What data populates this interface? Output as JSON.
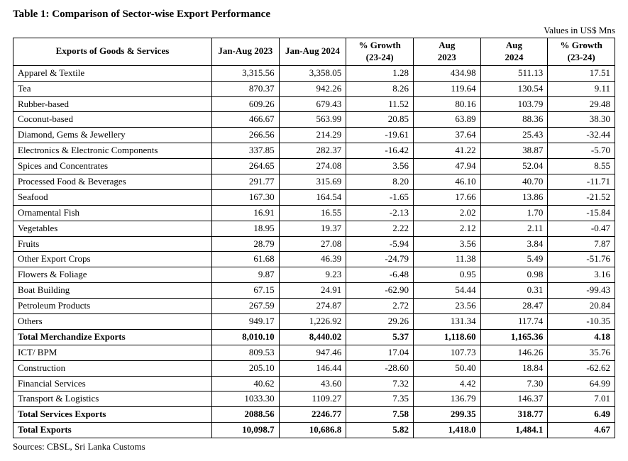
{
  "title": "Table 1: Comparison of Sector-wise Export Performance",
  "units": "Values in US$ Mns",
  "source": "Sources: CBSL, Sri Lanka Customs",
  "columns": {
    "rowhead": "Exports of Goods & Services",
    "c1": "Jan-Aug 2023",
    "c2": "Jan-Aug 2024",
    "c3a": "% Growth",
    "c3b": "(23-24)",
    "c4a": "Aug",
    "c4b": "2023",
    "c5a": "Aug",
    "c5b": "2024",
    "c6a": "% Growth",
    "c6b": "(23-24)"
  },
  "rows": [
    {
      "label": "Apparel & Textile",
      "v": [
        "3,315.56",
        "3,358.05",
        "1.28",
        "434.98",
        "511.13",
        "17.51"
      ],
      "bold": false
    },
    {
      "label": "Tea",
      "v": [
        "870.37",
        "942.26",
        "8.26",
        "119.64",
        "130.54",
        "9.11"
      ],
      "bold": false
    },
    {
      "label": "Rubber-based",
      "v": [
        "609.26",
        "679.43",
        "11.52",
        "80.16",
        "103.79",
        "29.48"
      ],
      "bold": false
    },
    {
      "label": "Coconut-based",
      "v": [
        "466.67",
        "563.99",
        "20.85",
        "63.89",
        "88.36",
        "38.30"
      ],
      "bold": false
    },
    {
      "label": "Diamond, Gems & Jewellery",
      "v": [
        "266.56",
        "214.29",
        "-19.61",
        "37.64",
        "25.43",
        "-32.44"
      ],
      "bold": false
    },
    {
      "label": "Electronics & Electronic   Components",
      "v": [
        "337.85",
        "282.37",
        "-16.42",
        "41.22",
        "38.87",
        "-5.70"
      ],
      "bold": false
    },
    {
      "label": "Spices and Concentrates",
      "v": [
        "264.65",
        "274.08",
        "3.56",
        "47.94",
        "52.04",
        "8.55"
      ],
      "bold": false
    },
    {
      "label": "Processed Food & Beverages",
      "v": [
        "291.77",
        "315.69",
        "8.20",
        "46.10",
        "40.70",
        "-11.71"
      ],
      "bold": false
    },
    {
      "label": "Seafood",
      "v": [
        "167.30",
        "164.54",
        "-1.65",
        "17.66",
        "13.86",
        "-21.52"
      ],
      "bold": false
    },
    {
      "label": "Ornamental Fish",
      "v": [
        "16.91",
        "16.55",
        "-2.13",
        "2.02",
        "1.70",
        "-15.84"
      ],
      "bold": false
    },
    {
      "label": "Vegetables",
      "v": [
        "18.95",
        "19.37",
        "2.22",
        "2.12",
        "2.11",
        "-0.47"
      ],
      "bold": false
    },
    {
      "label": "Fruits",
      "v": [
        "28.79",
        "27.08",
        "-5.94",
        "3.56",
        "3.84",
        "7.87"
      ],
      "bold": false
    },
    {
      "label": "Other Export Crops",
      "v": [
        "61.68",
        "46.39",
        "-24.79",
        "11.38",
        "5.49",
        "-51.76"
      ],
      "bold": false
    },
    {
      "label": "Flowers & Foliage",
      "v": [
        "9.87",
        "9.23",
        "-6.48",
        "0.95",
        "0.98",
        "3.16"
      ],
      "bold": false
    },
    {
      "label": "Boat Building",
      "v": [
        "67.15",
        "24.91",
        "-62.90",
        "54.44",
        "0.31",
        "-99.43"
      ],
      "bold": false
    },
    {
      "label": "Petroleum Products",
      "v": [
        "267.59",
        "274.87",
        "2.72",
        "23.56",
        "28.47",
        "20.84"
      ],
      "bold": false
    },
    {
      "label": "Others",
      "v": [
        "949.17",
        "1,226.92",
        "29.26",
        "131.34",
        "117.74",
        "-10.35"
      ],
      "bold": false
    },
    {
      "label": "Total Merchandize Exports",
      "v": [
        "8,010.10",
        "8,440.02",
        "5.37",
        "1,118.60",
        "1,165.36",
        "4.18"
      ],
      "bold": true
    },
    {
      "label": "ICT/ BPM",
      "v": [
        "809.53",
        "947.46",
        "17.04",
        "107.73",
        "146.26",
        "35.76"
      ],
      "bold": false
    },
    {
      "label": "Construction",
      "v": [
        "205.10",
        "146.44",
        "-28.60",
        "50.40",
        "18.84",
        "-62.62"
      ],
      "bold": false
    },
    {
      "label": "Financial Services",
      "v": [
        "40.62",
        "43.60",
        "7.32",
        "4.42",
        "7.30",
        "64.99"
      ],
      "bold": false
    },
    {
      "label": "Transport & Logistics",
      "v": [
        "1033.30",
        "1109.27",
        "7.35",
        "136.79",
        "146.37",
        "7.01"
      ],
      "bold": false
    },
    {
      "label": "Total Services Exports",
      "v": [
        "2088.56",
        "2246.77",
        "7.58",
        "299.35",
        "318.77",
        "6.49"
      ],
      "bold": true
    },
    {
      "label": "Total Exports",
      "v": [
        "10,098.7",
        "10,686.8",
        "5.82",
        "1,418.0",
        "1,484.1",
        "4.67"
      ],
      "bold": true
    }
  ],
  "style": {
    "font_family": "Times New Roman",
    "title_fontsize": 15,
    "body_fontsize": 13,
    "border_color": "#000000",
    "background_color": "#ffffff",
    "text_color": "#000000",
    "num_align": "right",
    "label_align": "left",
    "header_align": "center"
  }
}
